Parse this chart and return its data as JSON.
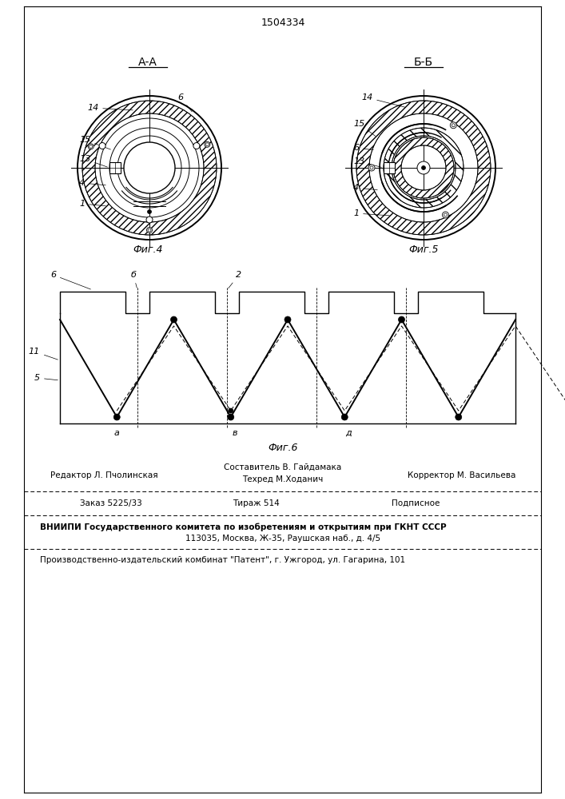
{
  "title": "1504334",
  "fig4_label": "А-А",
  "fig5_label": "Б-Б",
  "fig4_caption": "Фиг.4",
  "fig5_caption": "Фиг.5",
  "fig6_caption": "Фиг.6",
  "footer_col1_top": "Редактор Л. Пчолинская",
  "footer_col2_top1": "Составитель В. Гайдамака",
  "footer_col2_top2": "Техред М.Ходанич",
  "footer_col3_top": "Корректор М. Васильева",
  "footer_col1_bot": "Заказ 5225/33",
  "footer_col2_bot": "Тираж 514",
  "footer_col3_bot": "Подписное",
  "footer_vnipi": "ВНИИПИ Государственного комитета по изобретениям и открытиям при ГКНТ СССР",
  "footer_address": "113035, Москва, Ж-35, Раушская наб., д. 4/5",
  "footer_plant": "Производственно-издательский комбинат \"Патент\", г. Ужгород, ул. Гагарина, 101",
  "bg_color": "#ffffff"
}
